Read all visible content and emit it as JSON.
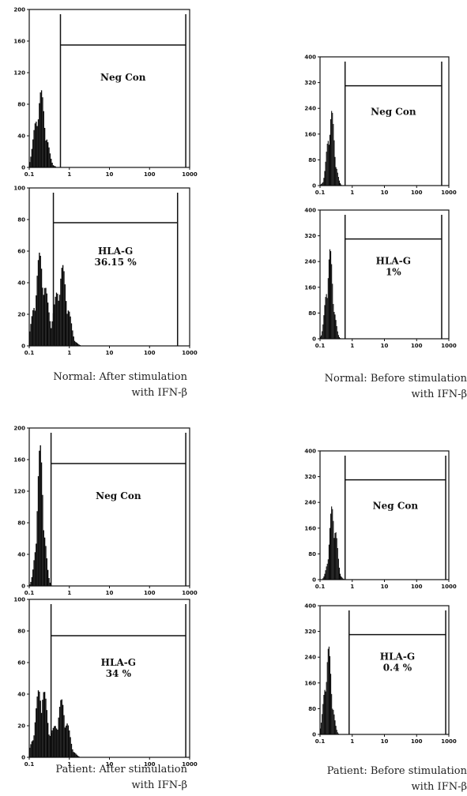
{
  "figure": {
    "captions": [
      {
        "line1": "Normal: After stimulation",
        "line2": "with IFN-β"
      },
      {
        "line1": "Normal: Before stimulation",
        "line2": "with IFN-β"
      },
      {
        "line1": "Patient: After stimulation",
        "line2": "with IFN-β"
      },
      {
        "line1": "Patient: Before stimulation",
        "line2": "with IFN-β"
      }
    ]
  },
  "chart_data": [
    {
      "type": "histogram",
      "group": "Normal: After stimulation with IFN-β",
      "label": "Neg Con",
      "sublabel": "",
      "x_ticks": [
        "0.1",
        "1",
        "10",
        "100",
        "1000"
      ],
      "y_ticks": [
        "0",
        "40",
        "80",
        "120",
        "160",
        "200"
      ],
      "ylim": [
        0,
        200
      ],
      "xlim": [
        0.1,
        1000
      ],
      "xscale": "log",
      "gate": {
        "x_start": 0.6,
        "x_end": 800,
        "y": 155
      },
      "peaks": [
        {
          "center": 0.19,
          "height": 100,
          "width": 0.13
        }
      ]
    },
    {
      "type": "histogram",
      "group": "Normal: After stimulation with IFN-β",
      "label": "HLA-G",
      "sublabel": "36.15 %",
      "x_ticks": [
        "0.1",
        "1",
        "10",
        "100",
        "1000"
      ],
      "y_ticks": [
        "0",
        "20",
        "40",
        "60",
        "80",
        "100"
      ],
      "ylim": [
        0,
        100
      ],
      "xlim": [
        0.1,
        1000
      ],
      "xscale": "log",
      "gate": {
        "x_start": 0.4,
        "x_end": 500,
        "y": 78
      },
      "peaks": [
        {
          "center": 0.19,
          "height": 60,
          "width": 0.14
        },
        {
          "center": 0.65,
          "height": 52,
          "width": 0.15
        }
      ]
    },
    {
      "type": "histogram",
      "group": "Normal: Before stimulation with IFN-β",
      "label": "Neg Con",
      "sublabel": "",
      "x_ticks": [
        "0.1",
        "1",
        "10",
        "100",
        "1000"
      ],
      "y_ticks": [
        "0",
        "80",
        "160",
        "240",
        "320",
        "400"
      ],
      "ylim": [
        0,
        400
      ],
      "xlim": [
        0.1,
        1000
      ],
      "xscale": "log",
      "gate": {
        "x_start": 0.6,
        "x_end": 600,
        "y": 310
      },
      "peaks": [
        {
          "center": 0.22,
          "height": 245,
          "width": 0.11
        }
      ]
    },
    {
      "type": "histogram",
      "group": "Normal: Before stimulation with IFN-β",
      "label": "HLA-G",
      "sublabel": "1%",
      "x_ticks": [
        "0.1",
        "1",
        "10",
        "100",
        "1000"
      ],
      "y_ticks": [
        "0",
        "80",
        "160",
        "240",
        "320",
        "400"
      ],
      "ylim": [
        0,
        400
      ],
      "xlim": [
        0.1,
        1000
      ],
      "xscale": "log",
      "gate": {
        "x_start": 0.6,
        "x_end": 600,
        "y": 310
      },
      "peaks": [
        {
          "center": 0.2,
          "height": 285,
          "width": 0.11
        }
      ]
    },
    {
      "type": "histogram",
      "group": "Patient: After stimulation with IFN-β",
      "label": "Neg Con",
      "sublabel": "",
      "x_ticks": [
        "0.1",
        "1",
        "10",
        "100",
        "1000"
      ],
      "y_ticks": [
        "0",
        "40",
        "80",
        "120",
        "160",
        "200"
      ],
      "ylim": [
        0,
        200
      ],
      "xlim": [
        0.1,
        1000
      ],
      "xscale": "log",
      "gate": {
        "x_start": 0.35,
        "x_end": 800,
        "y": 155
      },
      "peaks": [
        {
          "center": 0.19,
          "height": 180,
          "width": 0.09
        }
      ]
    },
    {
      "type": "histogram",
      "group": "Patient: After stimulation with IFN-β",
      "label": "HLA-G",
      "sublabel": "34 %",
      "x_ticks": [
        "0.1",
        "1",
        "10",
        "100",
        "1000"
      ],
      "y_ticks": [
        "0",
        "20",
        "40",
        "60",
        "80",
        "100"
      ],
      "ylim": [
        0,
        100
      ],
      "xlim": [
        0.1,
        1000
      ],
      "xscale": "log",
      "gate": {
        "x_start": 0.35,
        "x_end": 800,
        "y": 77
      },
      "peaks": [
        {
          "center": 0.2,
          "height": 50,
          "width": 0.14
        },
        {
          "center": 0.65,
          "height": 37,
          "width": 0.15
        }
      ]
    },
    {
      "type": "histogram",
      "group": "Patient: Before stimulation with IFN-β",
      "label": "Neg Con",
      "sublabel": "",
      "x_ticks": [
        "0.1",
        "1",
        "10",
        "100",
        "1000"
      ],
      "y_ticks": [
        "0",
        "80",
        "160",
        "240",
        "320",
        "400"
      ],
      "ylim": [
        0,
        400
      ],
      "xlim": [
        0.1,
        1000
      ],
      "xscale": "log",
      "gate": {
        "x_start": 0.6,
        "x_end": 800,
        "y": 310
      },
      "peaks": [
        {
          "center": 0.25,
          "height": 245,
          "width": 0.11
        }
      ]
    },
    {
      "type": "histogram",
      "group": "Patient: Before stimulation with IFN-β",
      "label": "HLA-G",
      "sublabel": "0.4 %",
      "x_ticks": [
        "0.1",
        "1",
        "10",
        "100",
        "1000"
      ],
      "y_ticks": [
        "0",
        "80",
        "160",
        "240",
        "320",
        "400"
      ],
      "ylim": [
        0,
        400
      ],
      "xlim": [
        0.1,
        1000
      ],
      "xscale": "log",
      "gate": {
        "x_start": 0.8,
        "x_end": 800,
        "y": 310
      },
      "peaks": [
        {
          "center": 0.18,
          "height": 280,
          "width": 0.11
        }
      ]
    }
  ]
}
